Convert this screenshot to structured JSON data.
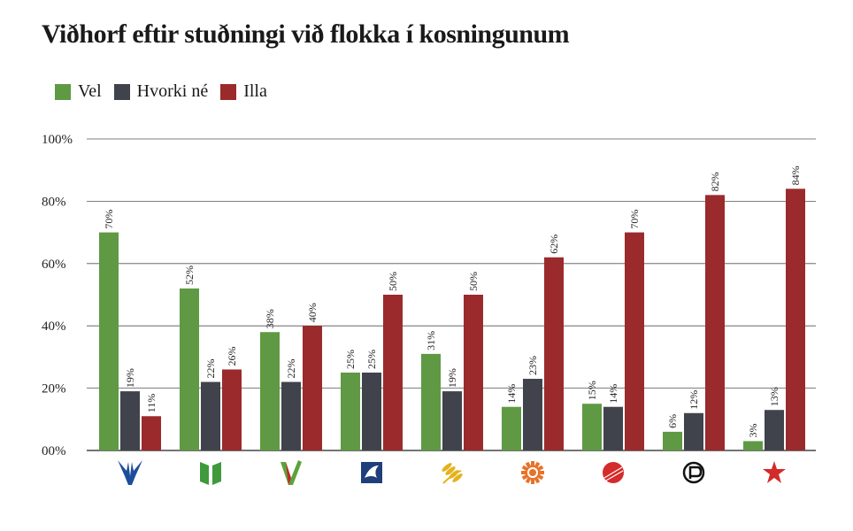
{
  "chart_data": {
    "type": "bar",
    "title": "Viðhorf eftir stuðningi við flokka í kosningunum",
    "ylim": [
      0,
      100
    ],
    "yticks": [
      {
        "value": 0,
        "label": "00%"
      },
      {
        "value": 20,
        "label": "20%"
      },
      {
        "value": 40,
        "label": "40%"
      },
      {
        "value": 60,
        "label": "60%"
      },
      {
        "value": 80,
        "label": "80%"
      },
      {
        "value": 100,
        "label": "100%"
      }
    ],
    "categories": [
      "falcon-logo",
      "book-logo",
      "v-logo",
      "bird-logo",
      "wheat-logo",
      "sun-logo",
      "ball-logo",
      "pirate-logo",
      "star-logo"
    ],
    "legend_position": "top-left",
    "grid": true,
    "series": [
      {
        "name": "Vel",
        "color": "#5f9944",
        "values": [
          70,
          52,
          38,
          25,
          31,
          14,
          15,
          6,
          3
        ]
      },
      {
        "name": "Hvorki né",
        "color": "#40434c",
        "values": [
          19,
          22,
          22,
          25,
          19,
          23,
          14,
          12,
          13
        ]
      },
      {
        "name": "Illa",
        "color": "#9b2a2c",
        "values": [
          11,
          26,
          40,
          50,
          50,
          62,
          70,
          82,
          84
        ]
      }
    ],
    "bar_labels": [
      [
        "70%",
        "52%",
        "38%",
        "25%",
        "31%",
        "14%",
        "15%",
        "6%",
        "3%"
      ],
      [
        "19%",
        "22%",
        "22%",
        "25%",
        "19%",
        "23%",
        "14%",
        "12%",
        "13%"
      ],
      [
        "11%",
        "26%",
        "40%",
        "50%",
        "50%",
        "62%",
        "70%",
        "82%",
        "84%"
      ]
    ]
  },
  "party_icons": [
    {
      "name": "falcon-icon",
      "color": "#1e4d9b"
    },
    {
      "name": "book-icon",
      "color": "#3f9a3c"
    },
    {
      "name": "v-icon",
      "color": "#5aa43a"
    },
    {
      "name": "bird-icon",
      "color": "#1e3f7a"
    },
    {
      "name": "wheat-icon",
      "color": "#e3b21d"
    },
    {
      "name": "sun-icon",
      "color": "#e8722a"
    },
    {
      "name": "ball-icon",
      "color": "#d42b2b"
    },
    {
      "name": "pirate-icon",
      "color": "#111111"
    },
    {
      "name": "star-icon",
      "color": "#d32a2a"
    }
  ]
}
